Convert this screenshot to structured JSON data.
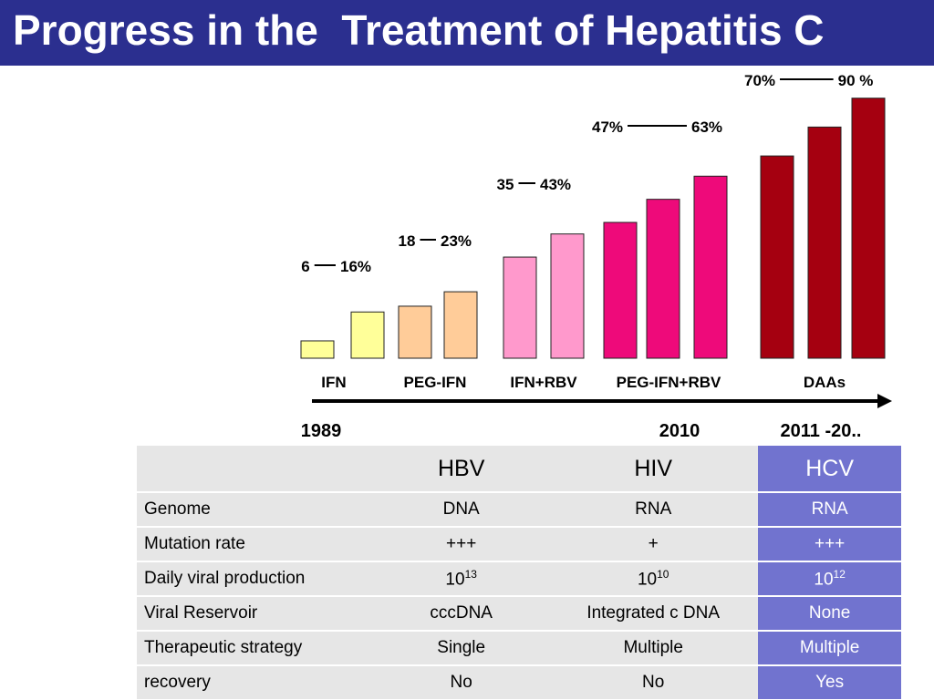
{
  "title": "Progress in the  Treatment of Hepatitis C",
  "colors": {
    "title_bar": "#2b2f8f",
    "hcv_column": "#7173cf",
    "table_bg": "#e6e6e6"
  },
  "chart_data": {
    "type": "bar",
    "groups": [
      {
        "label": "IFN",
        "range_low": "6",
        "range_high": "16%",
        "color": "#ffff99",
        "values": [
          6,
          16
        ]
      },
      {
        "label": "PEG-IFN",
        "range_low": "18",
        "range_high": "23%",
        "color": "#ffcc99",
        "values": [
          18,
          23
        ]
      },
      {
        "label": "IFN+RBV",
        "range_low": "35",
        "range_high": "43%",
        "color": "#ff99cc",
        "values": [
          35,
          43
        ]
      },
      {
        "label": "PEG-IFN+RBV",
        "range_low": "47%",
        "range_high": "63%",
        "color": "#ee0a7a",
        "values": [
          47,
          55,
          63
        ]
      },
      {
        "label": "DAAs",
        "range_low": "70%",
        "range_high": "90 %",
        "color": "#a50010",
        "values": [
          70,
          80,
          90
        ]
      }
    ],
    "unit": "%",
    "ylim": [
      0,
      100
    ],
    "timeline": {
      "start": "1989",
      "mid": "2010",
      "end": "2011 -20.."
    }
  },
  "table": {
    "headers": [
      "",
      "HBV",
      "HIV",
      "HCV"
    ],
    "rows": [
      {
        "label": "Genome",
        "hbv": "DNA",
        "hiv": "RNA",
        "hcv": "RNA"
      },
      {
        "label": "Mutation rate",
        "hbv": "+++",
        "hiv": "+",
        "hcv": "+++"
      },
      {
        "label": "Daily viral production",
        "hbv_base": "10",
        "hbv_exp": "13",
        "hiv_base": "10",
        "hiv_exp": "10",
        "hcv_base": "10",
        "hcv_exp": "12"
      },
      {
        "label": "Viral Reservoir",
        "hbv": "cccDNA",
        "hiv": "Integrated c DNA",
        "hcv": "None"
      },
      {
        "label": "Therapeutic strategy",
        "hbv": "Single",
        "hiv": "Multiple",
        "hcv": "Multiple"
      },
      {
        "label": "recovery",
        "hbv": "No",
        "hiv": "No",
        "hcv": "Yes"
      }
    ]
  }
}
